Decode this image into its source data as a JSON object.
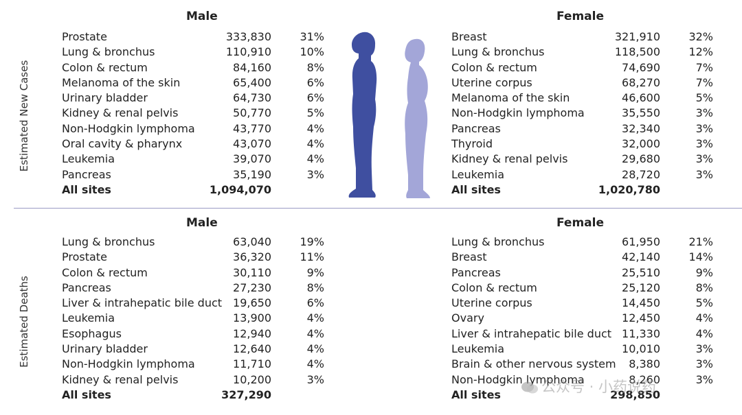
{
  "sections": [
    {
      "label": "Estimated New Cases",
      "male": {
        "heading": "Male",
        "rows": [
          {
            "site": "Prostate",
            "count": "333,830",
            "pct": "31%"
          },
          {
            "site": "Lung & bronchus",
            "count": "110,910",
            "pct": "10%"
          },
          {
            "site": "Colon & rectum",
            "count": "84,160",
            "pct": "8%"
          },
          {
            "site": "Melanoma of the skin",
            "count": "65,400",
            "pct": "6%"
          },
          {
            "site": "Urinary bladder",
            "count": "64,730",
            "pct": "6%"
          },
          {
            "site": "Kidney & renal pelvis",
            "count": "50,770",
            "pct": "5%"
          },
          {
            "site": "Non-Hodgkin lymphoma",
            "count": "43,770",
            "pct": "4%"
          },
          {
            "site": "Oral cavity & pharynx",
            "count": "43,070",
            "pct": "4%"
          },
          {
            "site": "Leukemia",
            "count": "39,070",
            "pct": "4%"
          },
          {
            "site": "Pancreas",
            "count": "35,190",
            "pct": "3%"
          }
        ],
        "total": {
          "site": "All sites",
          "count": "1,094,070"
        }
      },
      "female": {
        "heading": "Female",
        "rows": [
          {
            "site": "Breast",
            "count": "321,910",
            "pct": "32%"
          },
          {
            "site": "Lung & bronchus",
            "count": "118,500",
            "pct": "12%"
          },
          {
            "site": "Colon & rectum",
            "count": "74,690",
            "pct": "7%"
          },
          {
            "site": "Uterine corpus",
            "count": "68,270",
            "pct": "7%"
          },
          {
            "site": "Melanoma of the skin",
            "count": "46,600",
            "pct": "5%"
          },
          {
            "site": "Non-Hodgkin lymphoma",
            "count": "35,550",
            "pct": "3%"
          },
          {
            "site": "Pancreas",
            "count": "32,340",
            "pct": "3%"
          },
          {
            "site": "Thyroid",
            "count": "32,000",
            "pct": "3%"
          },
          {
            "site": "Kidney & renal pelvis",
            "count": "29,680",
            "pct": "3%"
          },
          {
            "site": "Leukemia",
            "count": "28,720",
            "pct": "3%"
          }
        ],
        "total": {
          "site": "All sites",
          "count": "1,020,780"
        }
      }
    },
    {
      "label": "Estimated Deaths",
      "male": {
        "heading": "Male",
        "rows": [
          {
            "site": "Lung & bronchus",
            "count": "63,040",
            "pct": "19%"
          },
          {
            "site": "Prostate",
            "count": "36,320",
            "pct": "11%"
          },
          {
            "site": "Colon & rectum",
            "count": "30,110",
            "pct": "9%"
          },
          {
            "site": "Pancreas",
            "count": "27,230",
            "pct": "8%"
          },
          {
            "site": "Liver & intrahepatic bile duct",
            "count": "19,650",
            "pct": "6%"
          },
          {
            "site": "Leukemia",
            "count": "13,900",
            "pct": "4%"
          },
          {
            "site": "Esophagus",
            "count": "12,940",
            "pct": "4%"
          },
          {
            "site": "Urinary bladder",
            "count": "12,640",
            "pct": "4%"
          },
          {
            "site": "Non-Hodgkin lymphoma",
            "count": "11,710",
            "pct": "4%"
          },
          {
            "site": "Kidney & renal pelvis",
            "count": "10,200",
            "pct": "3%"
          }
        ],
        "total": {
          "site": "All sites",
          "count": "327,290"
        }
      },
      "female": {
        "heading": "Female",
        "rows": [
          {
            "site": "Lung & bronchus",
            "count": "61,950",
            "pct": "21%"
          },
          {
            "site": "Breast",
            "count": "42,140",
            "pct": "14%"
          },
          {
            "site": "Pancreas",
            "count": "25,510",
            "pct": "9%"
          },
          {
            "site": "Colon & rectum",
            "count": "25,120",
            "pct": "8%"
          },
          {
            "site": "Uterine corpus",
            "count": "14,450",
            "pct": "5%"
          },
          {
            "site": "Ovary",
            "count": "12,450",
            "pct": "4%"
          },
          {
            "site": "Liver & intrahepatic bile duct",
            "count": "11,330",
            "pct": "4%"
          },
          {
            "site": "Leukemia",
            "count": "10,010",
            "pct": "3%"
          },
          {
            "site": "Brain & other nervous system",
            "count": "8,380",
            "pct": "3%"
          },
          {
            "site": "Non-Hodgkin lymphoma",
            "count": "8,260",
            "pct": "3%"
          }
        ],
        "total": {
          "site": "All sites",
          "count": "298,850"
        }
      }
    }
  ],
  "colors": {
    "male_figure": "#3f4fa0",
    "female_figure": "#a3a6d8",
    "divider": "#9a9ac4"
  },
  "watermark": {
    "text": "公众号 · 小药说药",
    "icon": "wechat-logo-icon"
  }
}
